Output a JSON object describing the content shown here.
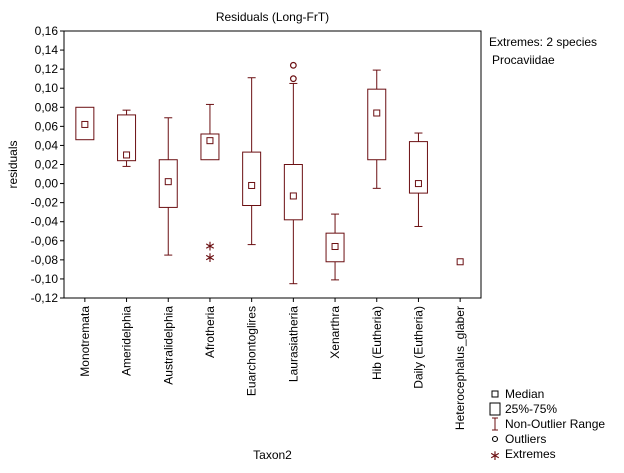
{
  "chart_data": {
    "type": "boxplot",
    "title": "Residuals (Long-FrT)",
    "xlabel": "Taxon2",
    "ylabel": "residuals",
    "ylim": [
      -0.12,
      0.16
    ],
    "yticks": [
      -0.12,
      -0.1,
      -0.08,
      -0.06,
      -0.04,
      -0.02,
      0.0,
      0.02,
      0.04,
      0.06,
      0.08,
      0.1,
      0.12,
      0.14,
      0.16
    ],
    "ytick_labels": [
      "-0,12",
      "-0,10",
      "-0,08",
      "-0,06",
      "-0,04",
      "-0,02",
      "0,00",
      "0,02",
      "0,04",
      "0,06",
      "0,08",
      "0,10",
      "0,12",
      "0,14",
      "0,16"
    ],
    "grid": false,
    "categories": [
      "Monotremata",
      "Ameridelphia",
      "Australidelphia",
      "Afrotheria",
      "Euarchontoglires",
      "Laurasiatheria",
      "Xenarthra",
      "Hib (Eutheria)",
      "Daily (Eutheria)",
      "Heterocephalus_glaber"
    ],
    "boxes": [
      {
        "median": 0.062,
        "q1": 0.046,
        "q3": 0.08,
        "whisker_low": null,
        "whisker_high": null,
        "outliers": [],
        "extremes": []
      },
      {
        "median": 0.03,
        "q1": 0.024,
        "q3": 0.072,
        "whisker_low": 0.018,
        "whisker_high": 0.077,
        "outliers": [],
        "extremes": []
      },
      {
        "median": 0.002,
        "q1": -0.025,
        "q3": 0.025,
        "whisker_low": -0.075,
        "whisker_high": 0.069,
        "outliers": [],
        "extremes": []
      },
      {
        "median": 0.045,
        "q1": 0.025,
        "q3": 0.052,
        "whisker_low": null,
        "whisker_high": 0.083,
        "outliers": [],
        "extremes": [
          -0.064,
          -0.076
        ]
      },
      {
        "median": -0.002,
        "q1": -0.023,
        "q3": 0.033,
        "whisker_low": -0.064,
        "whisker_high": 0.111,
        "outliers": [],
        "extremes": []
      },
      {
        "median": -0.013,
        "q1": -0.038,
        "q3": 0.02,
        "whisker_low": -0.105,
        "whisker_high": 0.105,
        "outliers": [
          0.11,
          0.124
        ],
        "extremes": []
      },
      {
        "median": -0.066,
        "q1": -0.082,
        "q3": -0.052,
        "whisker_low": -0.101,
        "whisker_high": -0.032,
        "outliers": [],
        "extremes": []
      },
      {
        "median": 0.074,
        "q1": 0.025,
        "q3": 0.099,
        "whisker_low": -0.005,
        "whisker_high": 0.119,
        "outliers": [],
        "extremes": []
      },
      {
        "median": 0.0,
        "q1": -0.01,
        "q3": 0.044,
        "whisker_low": -0.045,
        "whisker_high": 0.053,
        "outliers": [],
        "extremes": []
      },
      {
        "median": -0.082,
        "q1": null,
        "q3": null,
        "whisker_low": null,
        "whisker_high": null,
        "outliers": [],
        "extremes": []
      }
    ],
    "annotation_lines": [
      "Extremes: 2 species",
      "Procaviidae"
    ],
    "legend": {
      "placement": "bottom-right",
      "items": [
        {
          "symbol": "median",
          "label": "Median"
        },
        {
          "symbol": "box",
          "label": "25%-75%"
        },
        {
          "symbol": "whisker",
          "label": "Non-Outlier Range"
        },
        {
          "symbol": "outlier",
          "label": "Outliers"
        },
        {
          "symbol": "extreme",
          "label": "Extremes"
        }
      ]
    },
    "colors": {
      "box": "#6b0f12",
      "frame": "#000000",
      "background": "#ffffff"
    }
  }
}
